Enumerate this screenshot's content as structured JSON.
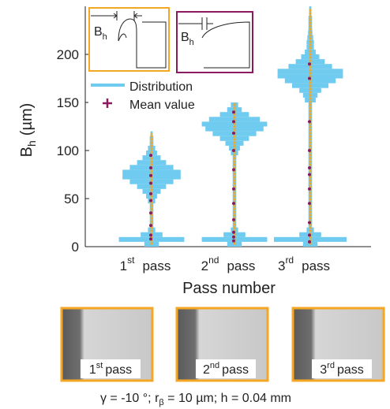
{
  "chart_data": {
    "type": "distribution",
    "y_label": {
      "symbol": "B",
      "subscript": "h",
      "unit": "(µm)"
    },
    "x_label": "Pass number",
    "categories": [
      "1",
      "2",
      "3"
    ],
    "category_suffixes": [
      "st",
      "nd",
      "rd"
    ],
    "category_word": "pass",
    "ylim": [
      0,
      250
    ],
    "yticks": [
      0,
      50,
      100,
      150,
      200
    ],
    "bins": [
      0,
      5,
      10,
      15,
      20,
      25,
      30,
      35,
      40,
      45,
      50,
      55,
      60,
      65,
      70,
      75,
      80,
      85,
      90,
      95,
      100,
      105,
      110,
      115,
      120,
      125,
      130,
      135,
      140,
      145,
      150,
      155,
      160,
      165,
      170,
      175,
      180,
      185,
      190,
      195,
      200,
      205,
      210,
      215,
      220,
      225,
      230,
      235,
      240,
      245,
      250
    ],
    "series": [
      {
        "name": "Distribution",
        "color": "#6fcbef",
        "counts": [
          [
            2,
            9,
            3,
            1,
            0.5,
            0.5,
            0.5,
            0.5,
            0.5,
            1,
            1.5,
            2.5,
            4,
            6,
            8,
            8,
            6,
            4,
            2.5,
            1.5,
            1,
            0.5,
            0.5,
            0.3,
            0,
            0,
            0,
            0,
            0,
            0,
            0,
            0,
            0,
            0,
            0,
            0,
            0,
            0,
            0,
            0,
            0,
            0,
            0,
            0,
            0,
            0,
            0,
            0,
            0,
            0
          ],
          [
            2,
            9,
            3,
            1,
            0.5,
            0.5,
            0.5,
            0.5,
            0.5,
            0.5,
            0.5,
            0.5,
            0.5,
            0.5,
            0.5,
            0.5,
            0.5,
            0.5,
            0.5,
            1,
            1.5,
            2.5,
            4,
            6,
            8,
            9,
            7,
            4,
            2,
            1,
            0,
            0,
            0,
            0,
            0,
            0,
            0,
            0,
            0,
            0,
            0,
            0,
            0,
            0,
            0,
            0,
            0,
            0,
            0,
            0
          ],
          [
            2,
            10,
            3,
            1,
            0.5,
            0.5,
            0.5,
            0.5,
            0.5,
            0.5,
            0.5,
            0.5,
            0.5,
            0.5,
            0.5,
            0.5,
            0.5,
            0.5,
            0.5,
            0.5,
            0.5,
            0.5,
            0.5,
            0.5,
            0.5,
            0.5,
            0.5,
            0.5,
            0.5,
            0.5,
            1.5,
            2,
            3,
            5,
            7,
            9,
            9,
            6,
            4,
            2.5,
            1.5,
            1,
            1,
            0.8,
            0.6,
            0.5,
            0.5,
            0.5,
            0.3,
            0.3
          ]
        ]
      },
      {
        "name": "Mean value",
        "color": "#8b1a5e",
        "values": [
          [
            8,
            12,
            22,
            35,
            48,
            55,
            66,
            74,
            82,
            95
          ],
          [
            6,
            10,
            15,
            28,
            45,
            60,
            80,
            100,
            118,
            130,
            140
          ],
          [
            5,
            12,
            25,
            45,
            60,
            75,
            82,
            100,
            130,
            175,
            190
          ]
        ]
      }
    ],
    "range_color": "#f5a623",
    "ranges": [
      [
        2,
        118
      ],
      [
        2,
        150
      ],
      [
        2,
        248
      ]
    ],
    "insets": [
      {
        "symbol": "B",
        "subscript": "h",
        "color": "#f5a623"
      },
      {
        "symbol": "B",
        "subscript": "h",
        "color": "#8b1a5e"
      }
    ],
    "photos": [
      {
        "number": "1",
        "suffix": "st",
        "word": "pass"
      },
      {
        "number": "2",
        "suffix": "nd",
        "word": "pass"
      },
      {
        "number": "3",
        "suffix": "rd",
        "word": "pass"
      }
    ],
    "caption": {
      "pre": "γ = -10 °; r",
      "subscript": "β",
      "post": " = 10 µm; h = 0.04 mm"
    }
  }
}
